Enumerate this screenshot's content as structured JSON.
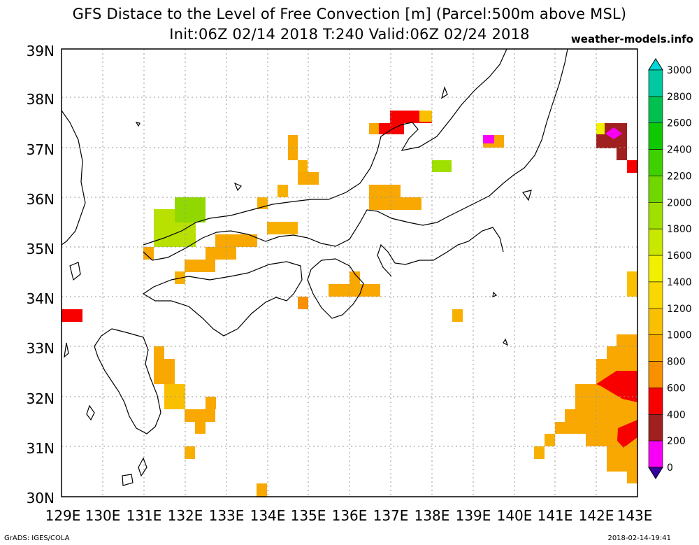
{
  "header": {
    "title": "GFS Distace to the Level of Free Convection [m] (Parcel:500m above MSL)",
    "subtitle": "Init:06Z 02/14 2018 T:240 Valid:06Z 02/24 2018",
    "site": "weather-models.info"
  },
  "footer": {
    "left": "GrADS: IGES/COLA",
    "right": "2018-02-14-19:41"
  },
  "map": {
    "lon_labels": [
      "129E",
      "130E",
      "131E",
      "132E",
      "133E",
      "134E",
      "135E",
      "136E",
      "137E",
      "138E",
      "139E",
      "140E",
      "141E",
      "142E",
      "143E"
    ],
    "lat_labels": [
      "30N",
      "31N",
      "32N",
      "33N",
      "34N",
      "35N",
      "36N",
      "37N",
      "38N",
      "39N"
    ],
    "lon_range": [
      129,
      143
    ],
    "lat_range": [
      30,
      39
    ],
    "grid": true
  },
  "colorbar": {
    "labels": [
      "3000",
      "2800",
      "2600",
      "2400",
      "2200",
      "2000",
      "1800",
      "1600",
      "1400",
      "1200",
      "1000",
      "800",
      "600",
      "400",
      "200",
      "0"
    ],
    "colors": [
      "#00d8d8",
      "#00c8a0",
      "#00c050",
      "#10c800",
      "#40d000",
      "#70d800",
      "#a0e000",
      "#c8e800",
      "#f0f000",
      "#f8d800",
      "#f8c000",
      "#f8a800",
      "#f89000",
      "#f80000",
      "#a02020",
      "#f800f8",
      "#3800a0"
    ]
  }
}
